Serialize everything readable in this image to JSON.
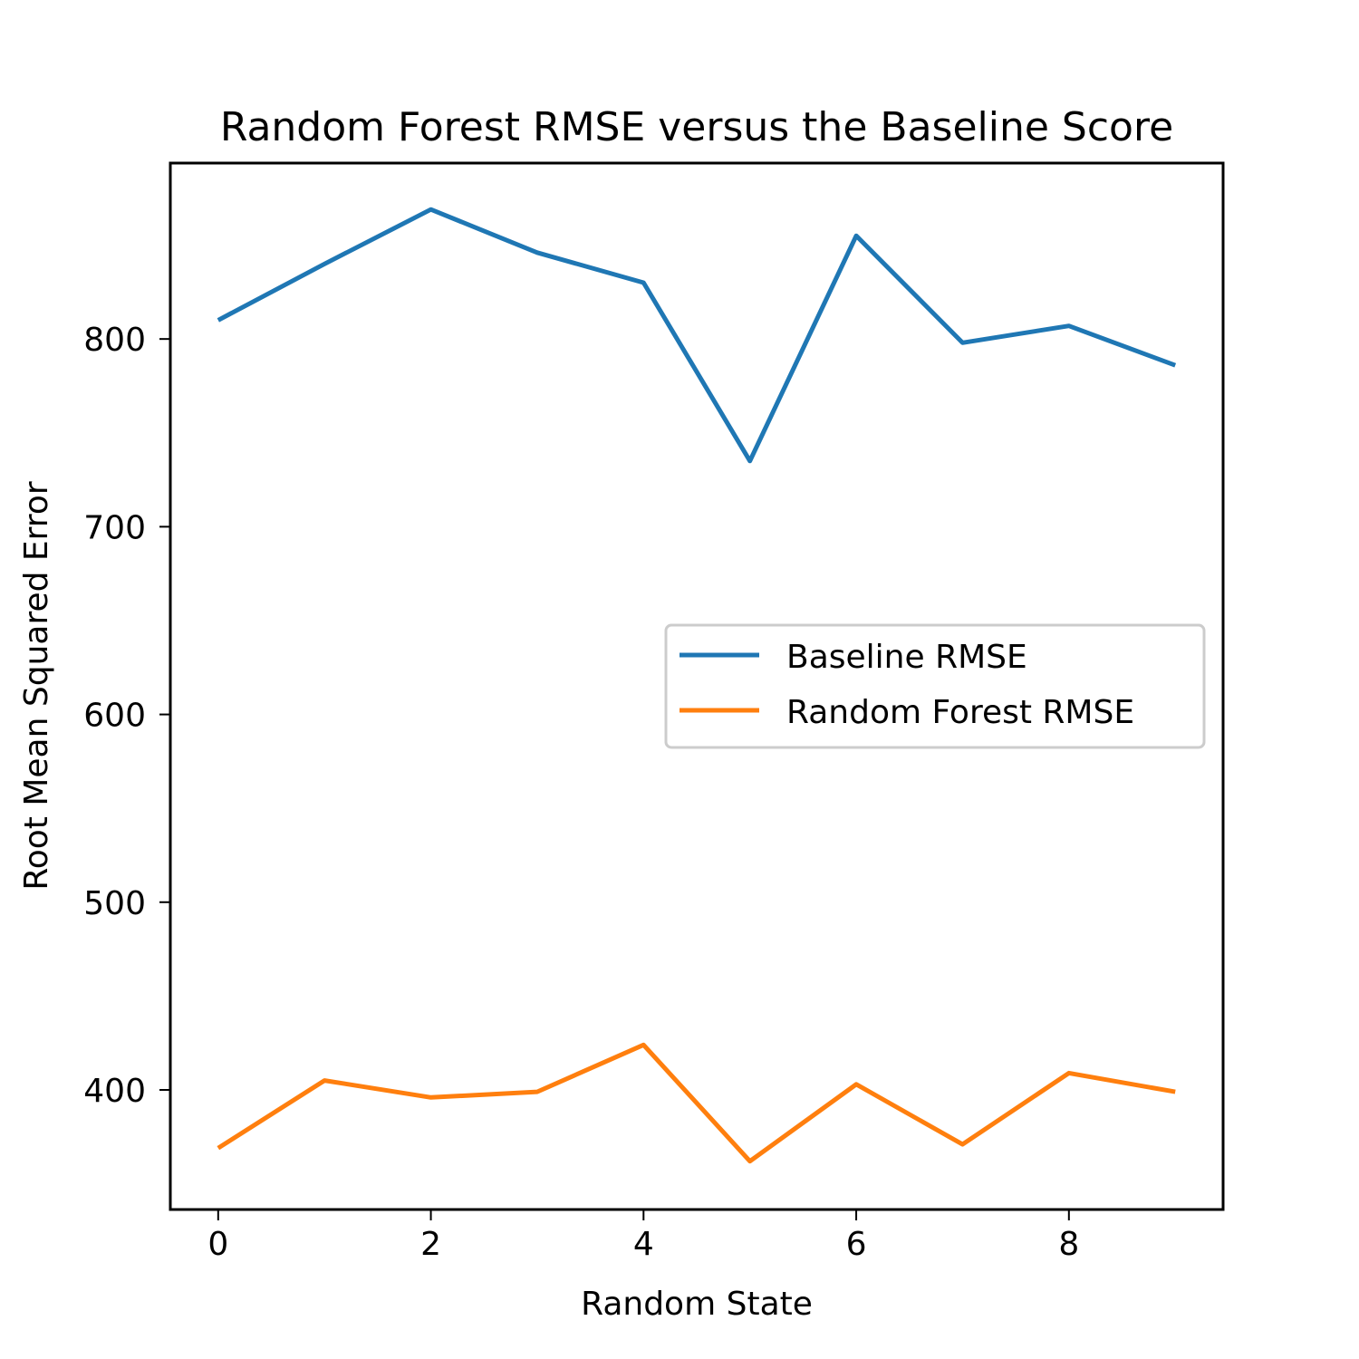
{
  "chart_data": {
    "type": "line",
    "title": "Random Forest RMSE versus the Baseline Score",
    "xlabel": "Random State",
    "ylabel": "Root Mean Squared Error",
    "x": [
      0,
      1,
      2,
      3,
      4,
      5,
      6,
      7,
      8,
      9
    ],
    "xlim": [
      -0.45,
      9.45
    ],
    "ylim": [
      336.3,
      893.7
    ],
    "xticks": [
      0,
      2,
      4,
      6,
      8
    ],
    "yticks": [
      400,
      500,
      600,
      700,
      800
    ],
    "grid": false,
    "legend_position": "center-right",
    "series": [
      {
        "name": "Baseline RMSE",
        "color": "#1f77b4",
        "values": [
          810,
          840,
          869,
          846,
          830,
          735,
          855,
          798,
          807,
          786
        ]
      },
      {
        "name": "Random Forest RMSE",
        "color": "#ff7f0e",
        "values": [
          369,
          405,
          396,
          399,
          424,
          362,
          403,
          371,
          409,
          399
        ]
      }
    ]
  }
}
